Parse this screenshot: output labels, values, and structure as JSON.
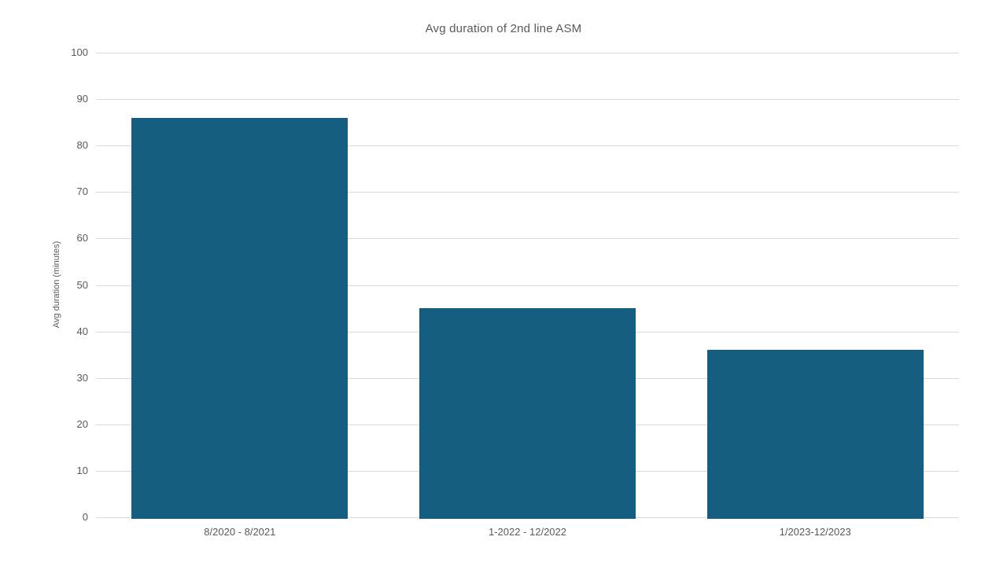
{
  "chart_data": {
    "type": "bar",
    "title": "Avg duration of 2nd line ASM",
    "xlabel": "",
    "ylabel": "Avg duration (minutes)",
    "categories": [
      "8/2020 - 8/2021",
      "1-2022 - 12/2022",
      "1/2023-12/2023"
    ],
    "values": [
      86,
      45,
      36
    ],
    "ylim": [
      0,
      100
    ],
    "ytick_step": 10,
    "grid": true,
    "legend": "none",
    "colors": {
      "bar": "#165e80",
      "gridline": "#d9d9d9",
      "text": "#595959",
      "background": "#ffffff"
    }
  }
}
